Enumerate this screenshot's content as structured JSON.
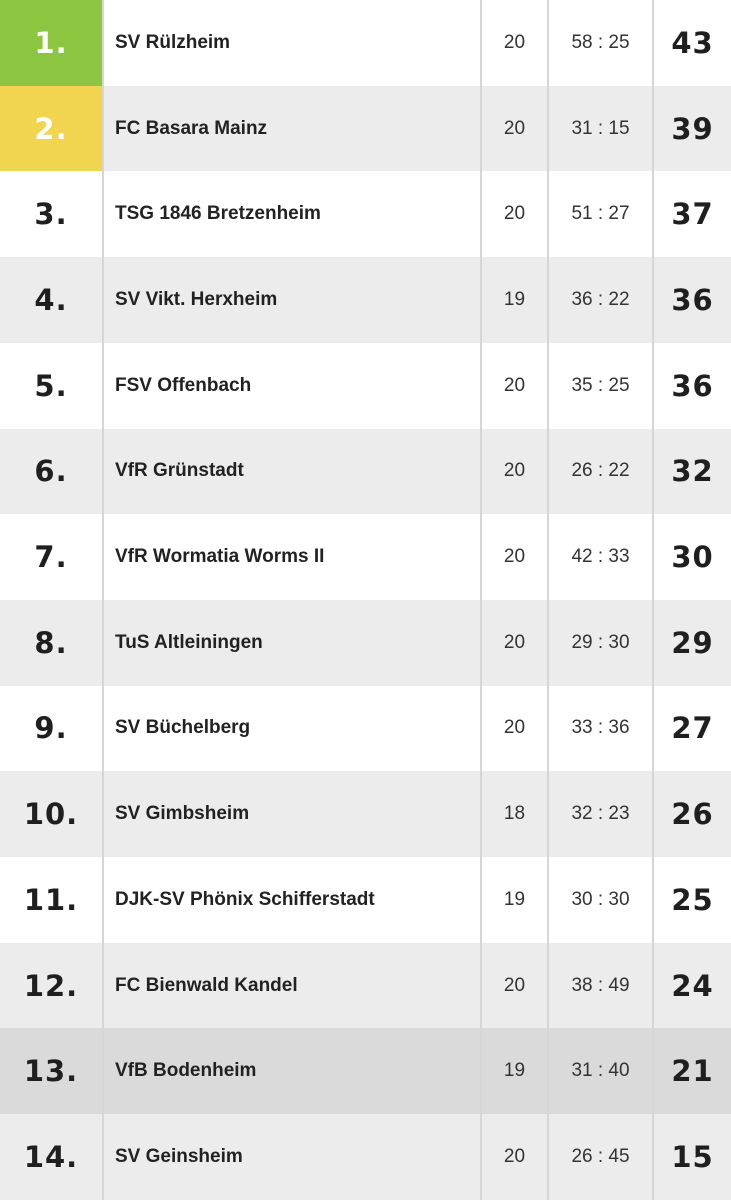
{
  "colors": {
    "first_place": "#8cc540",
    "second_place": "#f2d54f",
    "row_light": "#ffffff",
    "row_grey": "#ececec",
    "row_highlight": "#dadada"
  },
  "table": {
    "rows": [
      {
        "rank": "1.",
        "team": "SV Rülzheim",
        "games": "20",
        "goals": "58 : 25",
        "points": "43"
      },
      {
        "rank": "2.",
        "team": "FC Basara Mainz",
        "games": "20",
        "goals": "31 : 15",
        "points": "39"
      },
      {
        "rank": "3.",
        "team": "TSG 1846 Bretzenheim",
        "games": "20",
        "goals": "51 : 27",
        "points": "37"
      },
      {
        "rank": "4.",
        "team": "SV Vikt. Herxheim",
        "games": "19",
        "goals": "36 : 22",
        "points": "36"
      },
      {
        "rank": "5.",
        "team": "FSV Offenbach",
        "games": "20",
        "goals": "35 : 25",
        "points": "36"
      },
      {
        "rank": "6.",
        "team": "VfR Grünstadt",
        "games": "20",
        "goals": "26 : 22",
        "points": "32"
      },
      {
        "rank": "7.",
        "team": "VfR Wormatia Worms II",
        "games": "20",
        "goals": "42 : 33",
        "points": "30"
      },
      {
        "rank": "8.",
        "team": "TuS Altleiningen",
        "games": "20",
        "goals": "29 : 30",
        "points": "29"
      },
      {
        "rank": "9.",
        "team": "SV Büchelberg",
        "games": "20",
        "goals": "33 : 36",
        "points": "27"
      },
      {
        "rank": "10.",
        "team": "SV Gimbsheim",
        "games": "18",
        "goals": "32 : 23",
        "points": "26"
      },
      {
        "rank": "11.",
        "team": "DJK-SV Phönix Schifferstadt",
        "games": "19",
        "goals": "30 : 30",
        "points": "25"
      },
      {
        "rank": "12.",
        "team": "FC Bienwald Kandel",
        "games": "20",
        "goals": "38 : 49",
        "points": "24"
      },
      {
        "rank": "13.",
        "team": "VfB Bodenheim",
        "games": "19",
        "goals": "31 : 40",
        "points": "21"
      },
      {
        "rank": "14.",
        "team": "SV Geinsheim",
        "games": "20",
        "goals": "26 : 45",
        "points": "15"
      }
    ]
  }
}
